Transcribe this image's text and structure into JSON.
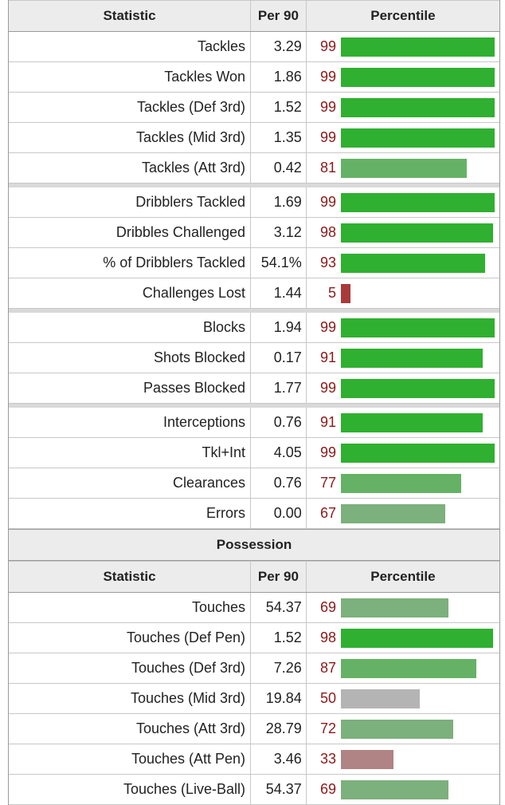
{
  "headers": {
    "statistic": "Statistic",
    "per90": "Per 90",
    "percentile": "Percentile"
  },
  "colors": {
    "elite": "#2fb030",
    "high": "#65b266",
    "mid_high": "#7cb07c",
    "average": "#b4b4b4",
    "low": "#b08484",
    "poor": "#a83a3a"
  },
  "defense_groups": [
    [
      {
        "stat": "Tackles",
        "per90": "3.29",
        "percentile": 99
      },
      {
        "stat": "Tackles Won",
        "per90": "1.86",
        "percentile": 99
      },
      {
        "stat": "Tackles (Def 3rd)",
        "per90": "1.52",
        "percentile": 99
      },
      {
        "stat": "Tackles (Mid 3rd)",
        "per90": "1.35",
        "percentile": 99
      },
      {
        "stat": "Tackles (Att 3rd)",
        "per90": "0.42",
        "percentile": 81
      }
    ],
    [
      {
        "stat": "Dribblers Tackled",
        "per90": "1.69",
        "percentile": 99
      },
      {
        "stat": "Dribbles Challenged",
        "per90": "3.12",
        "percentile": 98
      },
      {
        "stat": "% of Dribblers Tackled",
        "per90": "54.1%",
        "percentile": 93
      },
      {
        "stat": "Challenges Lost",
        "per90": "1.44",
        "percentile": 5
      }
    ],
    [
      {
        "stat": "Blocks",
        "per90": "1.94",
        "percentile": 99
      },
      {
        "stat": "Shots Blocked",
        "per90": "0.17",
        "percentile": 91
      },
      {
        "stat": "Passes Blocked",
        "per90": "1.77",
        "percentile": 99
      }
    ],
    [
      {
        "stat": "Interceptions",
        "per90": "0.76",
        "percentile": 91
      },
      {
        "stat": "Tkl+Int",
        "per90": "4.05",
        "percentile": 99
      },
      {
        "stat": "Clearances",
        "per90": "0.76",
        "percentile": 77
      },
      {
        "stat": "Errors",
        "per90": "0.00",
        "percentile": 67
      }
    ]
  ],
  "possession": {
    "title": "Possession",
    "rows": [
      {
        "stat": "Touches",
        "per90": "54.37",
        "percentile": 69
      },
      {
        "stat": "Touches (Def Pen)",
        "per90": "1.52",
        "percentile": 98
      },
      {
        "stat": "Touches (Def 3rd)",
        "per90": "7.26",
        "percentile": 87
      },
      {
        "stat": "Touches (Mid 3rd)",
        "per90": "19.84",
        "percentile": 50
      },
      {
        "stat": "Touches (Att 3rd)",
        "per90": "28.79",
        "percentile": 72
      },
      {
        "stat": "Touches (Att Pen)",
        "per90": "3.46",
        "percentile": 33
      },
      {
        "stat": "Touches (Live-Ball)",
        "per90": "54.37",
        "percentile": 69
      }
    ]
  }
}
